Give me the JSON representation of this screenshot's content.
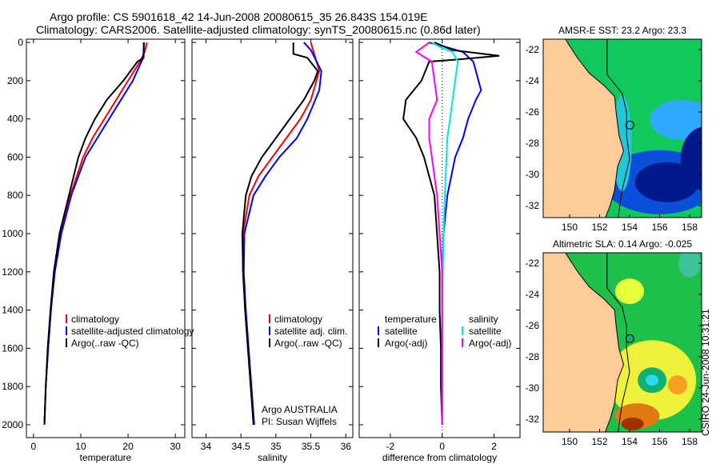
{
  "title_line1": "Argo profile: CS 5901618_42 14-Jun-2008 20080615_35 26.843S 154.019E",
  "title_line2": "Climatology: CARS2006. Satellite-adjusted climatology: synTS_20080615.nc (0.86d later)",
  "credit": "Argo AUSTRALIA",
  "pi": "PI: Susan Wijffels",
  "timestamp": "CSIRO 24-Jun-2008 10:31:21",
  "colors": {
    "clim": "#ff0000",
    "sat": "#0000ff",
    "argo": "#000000",
    "cyan": "#00e5e5",
    "magenta": "#ff00ff"
  },
  "chart_data": [
    {
      "type": "line",
      "xlabel": "temperature",
      "xlim": [
        -1.5,
        32
      ],
      "xticks": [
        0,
        10,
        20,
        30
      ],
      "ylim": [
        -17,
        2067
      ],
      "yticks": [
        0,
        200,
        400,
        600,
        800,
        1000,
        1200,
        1400,
        1600,
        1800,
        2000
      ],
      "yreversed": true,
      "legend": [
        {
          "label": "climatology",
          "color": "#ff0000"
        },
        {
          "label": "satellite-adjusted climatology",
          "color": "#0000ff"
        },
        {
          "label": "Argo(..raw -QC)",
          "color": "#000000"
        }
      ],
      "series": [
        {
          "name": "climatology",
          "color": "#ff0000",
          "depth": [
            0,
            50,
            100,
            200,
            300,
            400,
            500,
            600,
            800,
            1000,
            1200,
            1400,
            1600,
            1800,
            2000
          ],
          "values": [
            24,
            23.5,
            22.5,
            20,
            17.5,
            15,
            12.5,
            10.5,
            7.8,
            5.8,
            4.5,
            3.7,
            3.1,
            2.6,
            2.3
          ]
        },
        {
          "name": "satellite-adjusted climatology",
          "color": "#0000ff",
          "depth": [
            0,
            80,
            200,
            300,
            400,
            500,
            600,
            800,
            1000,
            1200,
            1400,
            1600,
            1800,
            2000
          ],
          "values": [
            23.4,
            23.2,
            21,
            18.5,
            16,
            13.5,
            11,
            8,
            5.9,
            4.5,
            3.7,
            3.1,
            2.6,
            2.3
          ]
        },
        {
          "name": "Argo(..raw -QC)",
          "color": "#000000",
          "depth": [
            0,
            80,
            100,
            200,
            300,
            400,
            500,
            600,
            800,
            1000,
            1200,
            1400,
            1600,
            1800,
            2000
          ],
          "values": [
            23.3,
            23.3,
            22,
            19,
            15.5,
            13,
            11,
            9.5,
            7.5,
            5.5,
            4.3,
            3.6,
            3.0,
            2.6,
            2.3
          ]
        }
      ]
    },
    {
      "type": "line",
      "xlabel": "salinity",
      "xlim": [
        33.8,
        36.1
      ],
      "xticks": [
        34,
        34.5,
        35,
        35.5,
        36
      ],
      "ylim": [
        -17,
        2067
      ],
      "yticks": [],
      "yreversed": true,
      "legend": [
        {
          "label": "climatology",
          "color": "#ff0000"
        },
        {
          "label": "satellite adj. clim.",
          "color": "#0000ff"
        },
        {
          "label": "Argo(..raw -QC)",
          "color": "#000000"
        }
      ],
      "series": [
        {
          "name": "climatology",
          "color": "#ff0000",
          "depth": [
            0,
            150,
            300,
            400,
            500,
            600,
            700,
            800,
            1000,
            1200,
            1400,
            1600,
            1800,
            2000
          ],
          "values": [
            35.5,
            35.62,
            35.5,
            35.35,
            35.15,
            34.95,
            34.75,
            34.62,
            34.53,
            34.53,
            34.56,
            34.6,
            34.64,
            34.68
          ]
        },
        {
          "name": "satellite adj. clim.",
          "color": "#0000ff",
          "depth": [
            0,
            40,
            150,
            250,
            400,
            500,
            600,
            700,
            800,
            1000,
            1200,
            1400,
            1600,
            1800,
            2000
          ],
          "values": [
            35.4,
            35.5,
            35.65,
            35.62,
            35.45,
            35.3,
            35.05,
            34.85,
            34.68,
            34.55,
            34.54,
            34.57,
            34.61,
            34.65,
            34.69
          ]
        },
        {
          "name": "Argo(..raw -QC)",
          "color": "#000000",
          "depth": [
            0,
            60,
            80,
            150,
            200,
            300,
            400,
            500,
            600,
            700,
            800,
            1000,
            1200,
            1400,
            1600,
            1800,
            2000
          ],
          "values": [
            35.25,
            35.25,
            35.45,
            35.6,
            35.55,
            35.4,
            35.2,
            35.0,
            34.8,
            34.65,
            34.57,
            34.52,
            34.53,
            34.56,
            34.6,
            34.64,
            34.68
          ]
        }
      ]
    },
    {
      "type": "line",
      "xlabel": "difference from climatology",
      "xlim": [
        -3.2,
        3
      ],
      "xticks": [
        -2,
        0,
        2
      ],
      "ylim": [
        -17,
        2067
      ],
      "yticks": [],
      "yreversed": true,
      "legend_left_title": "temperature",
      "legend_right_title": "salinity",
      "legend": [
        {
          "label": "satellite",
          "color": "#0000ff"
        },
        {
          "label": "Argo(-adj)",
          "color": "#000000"
        },
        {
          "label": "satellite",
          "color": "#00e5e5"
        },
        {
          "label": "Argo(-adj)",
          "color": "#ff00ff"
        }
      ],
      "series": [
        {
          "name": "temperature satellite",
          "color": "#0000ff",
          "depth": [
            0,
            30,
            50,
            100,
            150,
            200,
            250,
            300,
            400,
            500,
            600,
            800,
            1000,
            1200,
            1400,
            1600,
            1800,
            2000
          ],
          "values": [
            -0.5,
            0.3,
            0.8,
            1.2,
            1.3,
            1.4,
            1.5,
            1.3,
            1.0,
            0.8,
            0.5,
            0.2,
            0.05,
            0.0,
            0.0,
            0.0,
            0.0,
            0.0
          ]
        },
        {
          "name": "temperature Argo(-adj)",
          "color": "#000000",
          "depth": [
            0,
            40,
            70,
            90,
            100,
            200,
            300,
            400,
            500,
            600,
            800,
            1000,
            1200,
            1400,
            1600,
            1800,
            2000
          ],
          "values": [
            -0.3,
            0.4,
            2.2,
            0.5,
            -0.5,
            -0.8,
            -1.4,
            -1.5,
            -1.0,
            -0.7,
            -0.3,
            -0.2,
            -0.1,
            -0.1,
            -0.05,
            -0.05,
            0.0
          ]
        },
        {
          "name": "salinity satellite",
          "color": "#00e5e5",
          "depth": [
            0,
            30,
            50,
            100,
            200,
            300,
            400,
            500,
            800,
            1000,
            1400,
            2000
          ],
          "values": [
            -0.4,
            0.0,
            0.4,
            0.6,
            0.5,
            0.4,
            0.3,
            0.2,
            0.1,
            0.05,
            0.0,
            0.0
          ]
        },
        {
          "name": "salinity Argo(-adj)",
          "color": "#ff00ff",
          "depth": [
            0,
            30,
            50,
            100,
            200,
            300,
            400,
            500,
            600,
            800,
            1000,
            1200,
            1400,
            2000
          ],
          "values": [
            -0.5,
            -0.8,
            -1.0,
            -0.4,
            -0.3,
            -0.2,
            -0.5,
            -0.5,
            -0.4,
            -0.2,
            -0.1,
            0.0,
            0.0,
            0.0
          ]
        }
      ]
    }
  ],
  "maps": [
    {
      "title": "AMSR-E SST: 23.2 Argo: 23.3",
      "variable": "sst"
    },
    {
      "title": "Altimetric SLA: 0.14 Argo: -0.025",
      "variable": "sla"
    }
  ],
  "map_axes": {
    "lon_ticks": [
      "150",
      "152",
      "154",
      "156",
      "158"
    ],
    "lat_ticks": [
      "-22",
      "-24",
      "-26",
      "-28",
      "-30",
      "-32"
    ]
  }
}
